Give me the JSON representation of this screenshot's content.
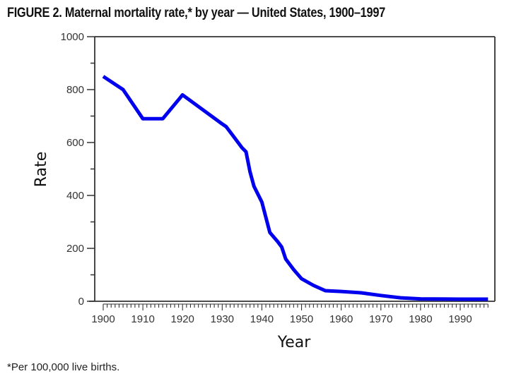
{
  "title": "FIGURE 2. Maternal mortality rate,* by year — United States, 1900–1997",
  "footnote": "*Per 100,000 live births.",
  "chart_data": {
    "type": "line",
    "title": "FIGURE 2. Maternal mortality rate,* by year — United States, 1900–1997",
    "xlabel": "Year",
    "ylabel": "Rate",
    "xlim": [
      1900,
      1997
    ],
    "ylim": [
      0,
      1000
    ],
    "x_ticks": [
      1900,
      1910,
      1920,
      1930,
      1940,
      1950,
      1960,
      1970,
      1980,
      1990
    ],
    "x_tick_labels": [
      "1900",
      "1910",
      "1920",
      "1930",
      "1940",
      "1950",
      "1960",
      "1970",
      "1980",
      "1990"
    ],
    "x_minor_tick_step": 1,
    "y_ticks": [
      0,
      200,
      400,
      600,
      800,
      1000
    ],
    "y_tick_labels": [
      "0",
      "200",
      "400",
      "600",
      "800",
      "1000"
    ],
    "y_minor_tick_step": 100,
    "grid": false,
    "legend": null,
    "line_color": "#0000ee",
    "series": [
      {
        "name": "Maternal mortality rate",
        "x": [
          1900,
          1905,
          1910,
          1915,
          1920,
          1925,
          1930,
          1931,
          1933,
          1935,
          1936,
          1937,
          1938,
          1940,
          1942,
          1944,
          1945,
          1946,
          1948,
          1950,
          1953,
          1956,
          1960,
          1965,
          1970,
          1975,
          1980,
          1990,
          1997
        ],
        "values": [
          850,
          800,
          690,
          690,
          780,
          725,
          670,
          660,
          620,
          580,
          565,
          490,
          435,
          375,
          260,
          225,
          205,
          160,
          120,
          85,
          60,
          40,
          37,
          32,
          22,
          13,
          9,
          8,
          8
        ]
      }
    ],
    "footnote": "*Per 100,000 live births."
  }
}
